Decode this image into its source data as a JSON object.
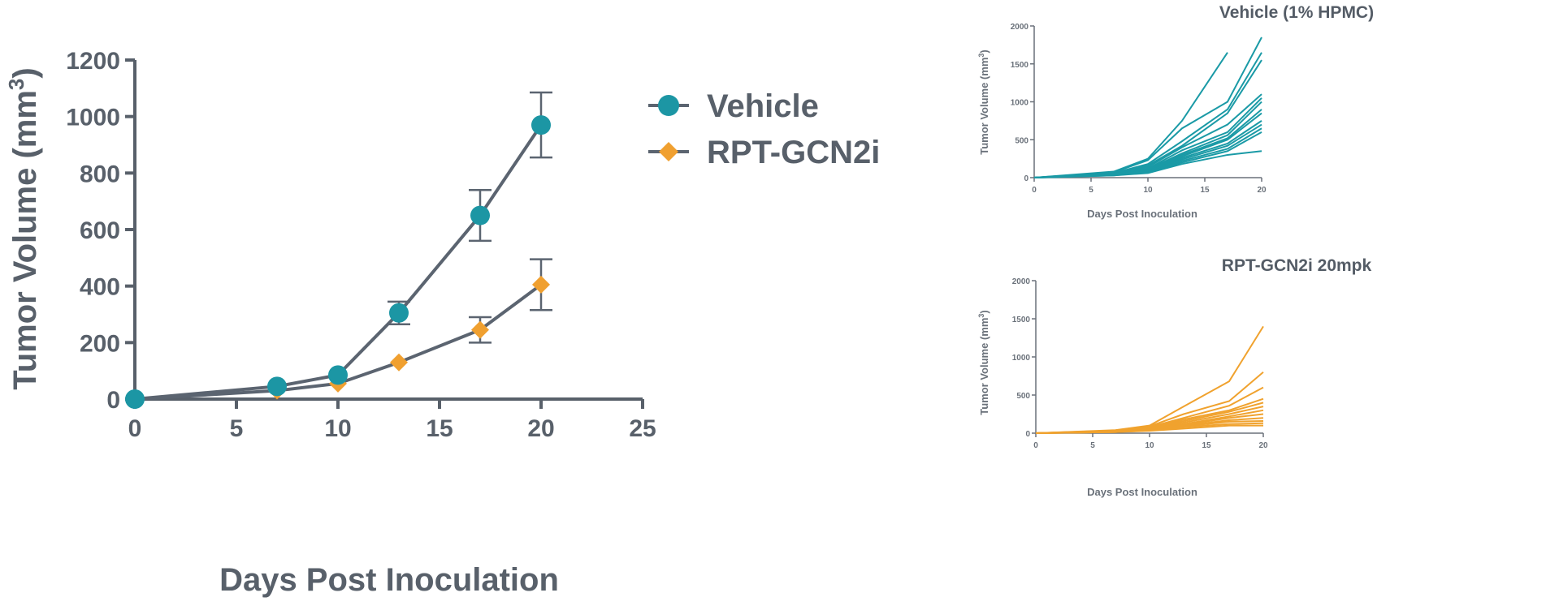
{
  "chart_data": [
    {
      "type": "line",
      "title": "",
      "xlabel": "Days Post Inoculation",
      "ylabel": "Tumor Volume (mm",
      "ylabel_sup": "3",
      "ylabel_close": ")",
      "xlim": [
        0,
        25
      ],
      "ylim": [
        0,
        1200
      ],
      "xticks": [
        "0",
        "5",
        "10",
        "15",
        "20",
        "25"
      ],
      "yticks": [
        "0",
        "200",
        "400",
        "600",
        "800",
        "1000",
        "1200"
      ],
      "legend": "top-right",
      "series": [
        {
          "name": "Vehicle",
          "color": "#1c96a4",
          "marker": "circle",
          "x": [
            0,
            7,
            10,
            13,
            17,
            20
          ],
          "y": [
            0,
            45,
            85,
            305,
            650,
            970
          ],
          "err": [
            0,
            0,
            0,
            40,
            90,
            115
          ]
        },
        {
          "name": "RPT-GCN2i",
          "color": "#f0a030",
          "marker": "diamond",
          "x": [
            0,
            7,
            10,
            13,
            17,
            20
          ],
          "y": [
            0,
            30,
            55,
            130,
            245,
            405
          ],
          "err": [
            0,
            0,
            0,
            0,
            45,
            90
          ]
        }
      ]
    },
    {
      "type": "line",
      "title": "Vehicle (1% HPMC)",
      "xlabel": "Days Post Inoculation",
      "ylabel": "Tumor Volume (mm",
      "ylabel_sup": "3",
      "ylabel_close": ")",
      "xlim": [
        0,
        20
      ],
      "ylim": [
        0,
        2000
      ],
      "xticks": [
        "0",
        "5",
        "10",
        "15",
        "20"
      ],
      "yticks": [
        "0",
        "500",
        "1000",
        "1500",
        "2000"
      ],
      "color": "#1a9aa6",
      "x": [
        0,
        7,
        10,
        13,
        17,
        20
      ],
      "series": [
        [
          0,
          80,
          250,
          750,
          1650
        ],
        [
          0,
          70,
          230,
          650,
          1000,
          1850
        ],
        [
          0,
          60,
          180,
          480,
          900,
          1650
        ],
        [
          0,
          50,
          160,
          420,
          850,
          1550
        ],
        [
          0,
          55,
          140,
          400,
          700,
          1100
        ],
        [
          0,
          45,
          120,
          360,
          600,
          1050
        ],
        [
          0,
          50,
          110,
          320,
          560,
          1000
        ],
        [
          0,
          40,
          100,
          300,
          520,
          900
        ],
        [
          0,
          45,
          90,
          280,
          500,
          850
        ],
        [
          0,
          35,
          80,
          260,
          450,
          750
        ],
        [
          0,
          40,
          85,
          240,
          420,
          700
        ],
        [
          0,
          30,
          70,
          220,
          380,
          650
        ],
        [
          0,
          35,
          75,
          200,
          350,
          600
        ],
        [
          0,
          30,
          60,
          180,
          300,
          350
        ]
      ]
    },
    {
      "type": "line",
      "title": "RPT-GCN2i 20mpk",
      "xlabel": "Days Post Inoculation",
      "ylabel": "Tumor Volume (mm",
      "ylabel_sup": "3",
      "ylabel_close": ")",
      "xlim": [
        0,
        20
      ],
      "ylim": [
        0,
        2000
      ],
      "xticks": [
        "0",
        "5",
        "10",
        "15",
        "20"
      ],
      "yticks": [
        "0",
        "500",
        "1000",
        "1500",
        "2000"
      ],
      "color": "#f0a22e",
      "x": [
        0,
        7,
        10,
        13,
        17,
        20
      ],
      "series": [
        [
          0,
          40,
          100,
          350,
          680,
          1400
        ],
        [
          0,
          35,
          90,
          250,
          420,
          800
        ],
        [
          0,
          30,
          80,
          200,
          360,
          600
        ],
        [
          0,
          30,
          70,
          180,
          300,
          450
        ],
        [
          0,
          25,
          65,
          160,
          280,
          400
        ],
        [
          0,
          25,
          60,
          140,
          250,
          350
        ],
        [
          0,
          20,
          55,
          120,
          220,
          300
        ],
        [
          0,
          20,
          50,
          110,
          200,
          250
        ],
        [
          0,
          20,
          45,
          100,
          170,
          200
        ],
        [
          0,
          15,
          40,
          90,
          150,
          160
        ],
        [
          0,
          15,
          35,
          80,
          120,
          130
        ],
        [
          0,
          15,
          30,
          60,
          100,
          100
        ]
      ]
    }
  ]
}
